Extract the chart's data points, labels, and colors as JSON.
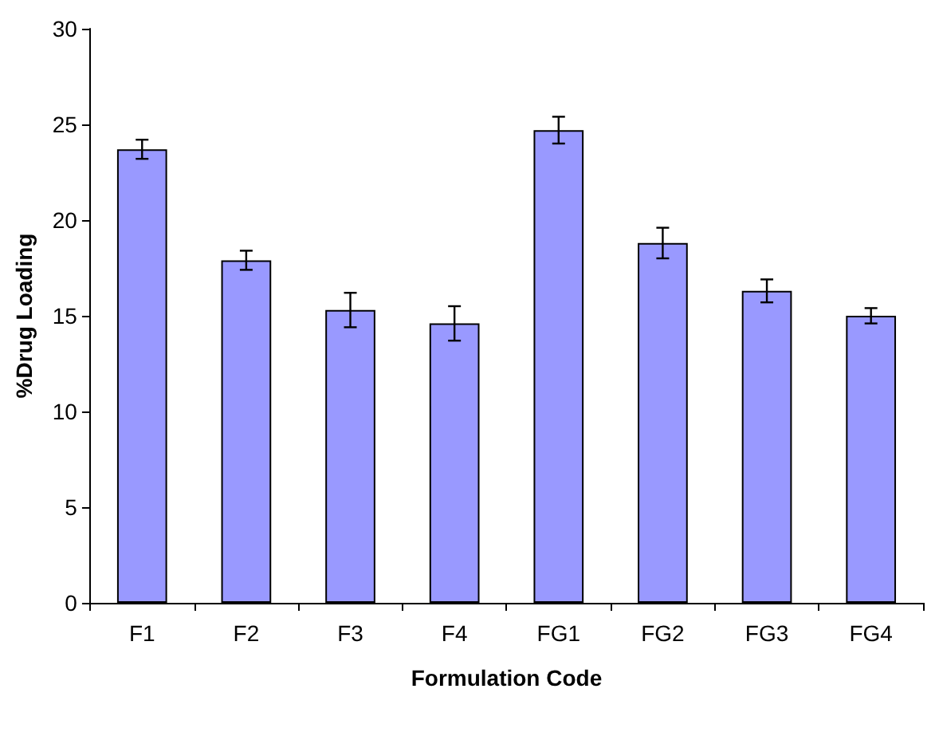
{
  "chart_data": {
    "type": "bar",
    "xlabel": "Formulation Code",
    "ylabel": "%Drug Loading",
    "categories": [
      "F1",
      "F2",
      "F3",
      "F4",
      "FG1",
      "FG2",
      "FG3",
      "FG4"
    ],
    "values": [
      23.7,
      17.9,
      15.3,
      14.6,
      24.7,
      18.8,
      16.3,
      15.0
    ],
    "errors": [
      0.5,
      0.5,
      0.9,
      0.9,
      0.7,
      0.8,
      0.6,
      0.4
    ],
    "color": "#9999ff",
    "ylim": [
      0,
      30
    ],
    "yticks": [
      0,
      5,
      10,
      15,
      20,
      25,
      30
    ]
  }
}
